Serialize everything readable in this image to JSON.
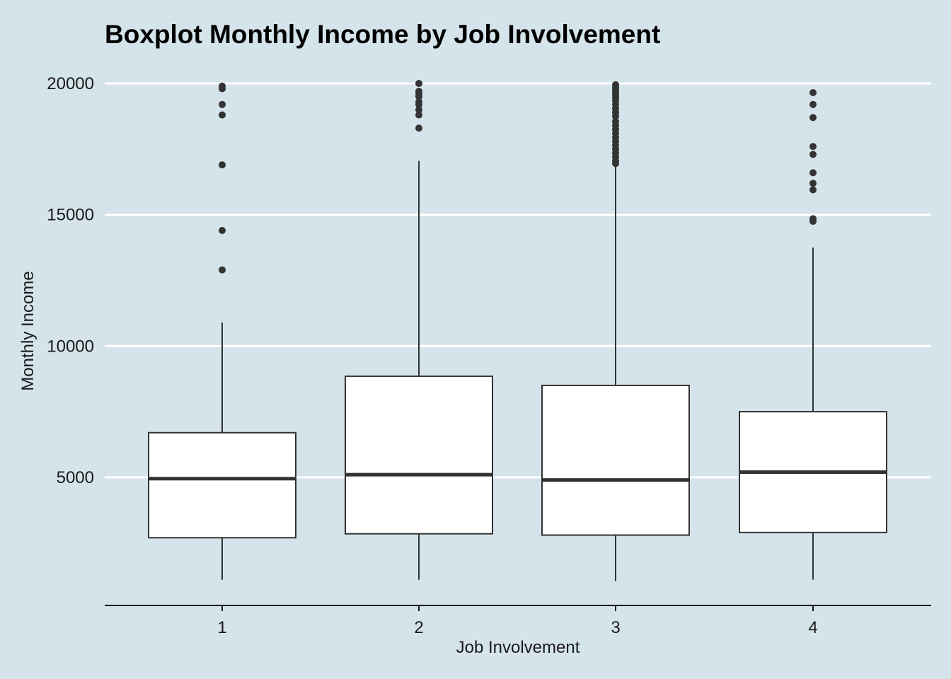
{
  "chart_data": {
    "type": "boxplot",
    "title": "Boxplot Monthly Income by Job Involvement",
    "xlabel": "Job Involvement",
    "ylabel": "Monthly Income",
    "ylim": [
      0,
      20000
    ],
    "y_ticks": [
      5000,
      10000,
      15000,
      20000
    ],
    "y_tick_labels": [
      "5000",
      "10000",
      "15000",
      "20000"
    ],
    "grid": "horizontal-major",
    "colors": {
      "background": "#d5e4eb",
      "box_fill": "#ffffff",
      "stroke": "#333333",
      "grid": "#ffffff"
    },
    "categories": [
      "1",
      "2",
      "3",
      "4"
    ],
    "boxes": [
      {
        "category": "1",
        "whisker_low": 1100,
        "q1": 2700,
        "median": 4950,
        "q3": 6700,
        "whisker_high": 10900,
        "outliers": [
          19900,
          19800,
          19200,
          18800,
          16900,
          14400,
          12900
        ]
      },
      {
        "category": "2",
        "whisker_low": 1100,
        "q1": 2850,
        "median": 5100,
        "q3": 8850,
        "whisker_high": 17050,
        "outliers": [
          20000,
          19700,
          19600,
          19500,
          19300,
          19200,
          19000,
          18800,
          18300
        ]
      },
      {
        "category": "3",
        "whisker_low": 1050,
        "q1": 2800,
        "median": 4900,
        "q3": 8500,
        "whisker_high": 16950,
        "outliers": [
          19950,
          19850,
          19750,
          19650,
          19550,
          19450,
          19350,
          19200,
          19050,
          18900,
          18750,
          18550,
          18400,
          18250,
          18100,
          17950,
          17800,
          17650,
          17500,
          17350,
          17200,
          17050,
          16950
        ]
      },
      {
        "category": "4",
        "whisker_low": 1100,
        "q1": 2900,
        "median": 5200,
        "q3": 7500,
        "whisker_high": 13750,
        "outliers": [
          19650,
          19200,
          18700,
          17600,
          17300,
          16600,
          16200,
          15950,
          14850,
          14750
        ]
      }
    ]
  }
}
